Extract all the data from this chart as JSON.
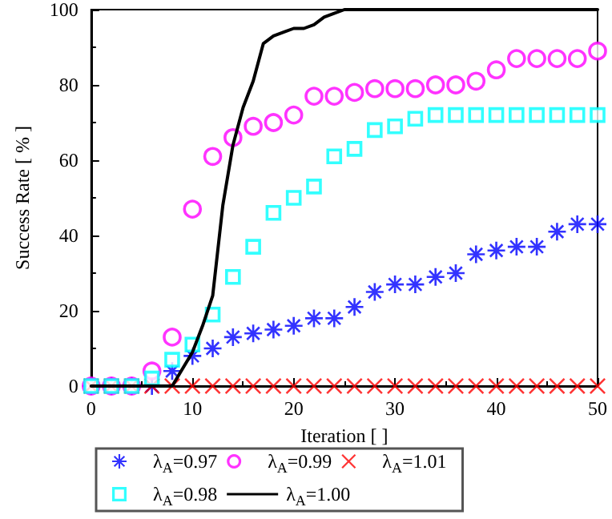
{
  "chart_data": {
    "type": "scatter",
    "xlabel": "Iteration [ ]",
    "ylabel": "Success Rate [ % ]",
    "xlim": [
      0,
      50
    ],
    "ylim": [
      0,
      100
    ],
    "xticks": [
      0,
      10,
      20,
      30,
      40,
      50
    ],
    "yticks": [
      0,
      20,
      40,
      60,
      80,
      100
    ],
    "grid": false,
    "legend": "bottom",
    "series": [
      {
        "name": "λ$_{A}$=0.97",
        "marker": "star",
        "color": "#0000ff",
        "x": [
          0,
          2,
          4,
          6,
          8,
          10,
          12,
          14,
          16,
          18,
          20,
          22,
          24,
          26,
          28,
          30,
          32,
          34,
          36,
          38,
          40,
          42,
          44,
          46,
          48,
          50
        ],
        "values": [
          0,
          0,
          0,
          0,
          4,
          8,
          10,
          13,
          14,
          15,
          16,
          18,
          18,
          21,
          25,
          27,
          27,
          29,
          30,
          35,
          36,
          37,
          37,
          41,
          43,
          43
        ]
      },
      {
        "name": "λ$_{A}$=0.99",
        "marker": "circle",
        "color": "#ff00ff",
        "x": [
          0,
          2,
          4,
          6,
          8,
          10,
          12,
          14,
          16,
          18,
          20,
          22,
          24,
          26,
          28,
          30,
          32,
          34,
          36,
          38,
          40,
          42,
          44,
          46,
          48,
          50
        ],
        "values": [
          0,
          0,
          0,
          4,
          13,
          47,
          61,
          66,
          69,
          70,
          72,
          77,
          77,
          78,
          79,
          79,
          79,
          80,
          80,
          81,
          84,
          87,
          87,
          87,
          87,
          89
        ]
      },
      {
        "name": "λ$_{A}$=1.01",
        "marker": "cross",
        "color": "#ff0000",
        "x": [
          0,
          2,
          4,
          6,
          8,
          10,
          12,
          14,
          16,
          18,
          20,
          22,
          24,
          26,
          28,
          30,
          32,
          34,
          36,
          38,
          40,
          42,
          44,
          46,
          48,
          50
        ],
        "values": [
          0,
          0,
          0,
          0,
          0,
          0,
          0,
          0,
          0,
          0,
          0,
          0,
          0,
          0,
          0,
          0,
          0,
          0,
          0,
          0,
          0,
          0,
          0,
          0,
          0,
          0
        ]
      },
      {
        "name": "λ$_{A}$=0.98",
        "marker": "square",
        "color": "#00ffff",
        "x": [
          0,
          2,
          4,
          6,
          8,
          10,
          12,
          14,
          16,
          18,
          20,
          22,
          24,
          26,
          28,
          30,
          32,
          34,
          36,
          38,
          40,
          42,
          44,
          46,
          48,
          50
        ],
        "values": [
          0,
          0,
          0,
          2,
          7,
          11,
          19,
          29,
          37,
          46,
          50,
          53,
          61,
          63,
          68,
          69,
          71,
          72,
          72,
          72,
          72,
          72,
          72,
          72,
          72,
          72
        ]
      },
      {
        "name": "λ$_{A}$=1.00",
        "type": "line",
        "marker": "none",
        "color": "#000000",
        "x": [
          0,
          2,
          4,
          6,
          8,
          10,
          11,
          12,
          13,
          14,
          15,
          16,
          17,
          18,
          19,
          20,
          21,
          22,
          23,
          24,
          25,
          26,
          50
        ],
        "values": [
          0,
          0,
          0,
          0,
          0,
          9,
          16,
          24,
          48,
          64,
          74,
          81,
          91,
          93,
          94,
          95,
          95,
          96,
          98,
          99,
          100,
          100,
          100
        ]
      }
    ]
  }
}
